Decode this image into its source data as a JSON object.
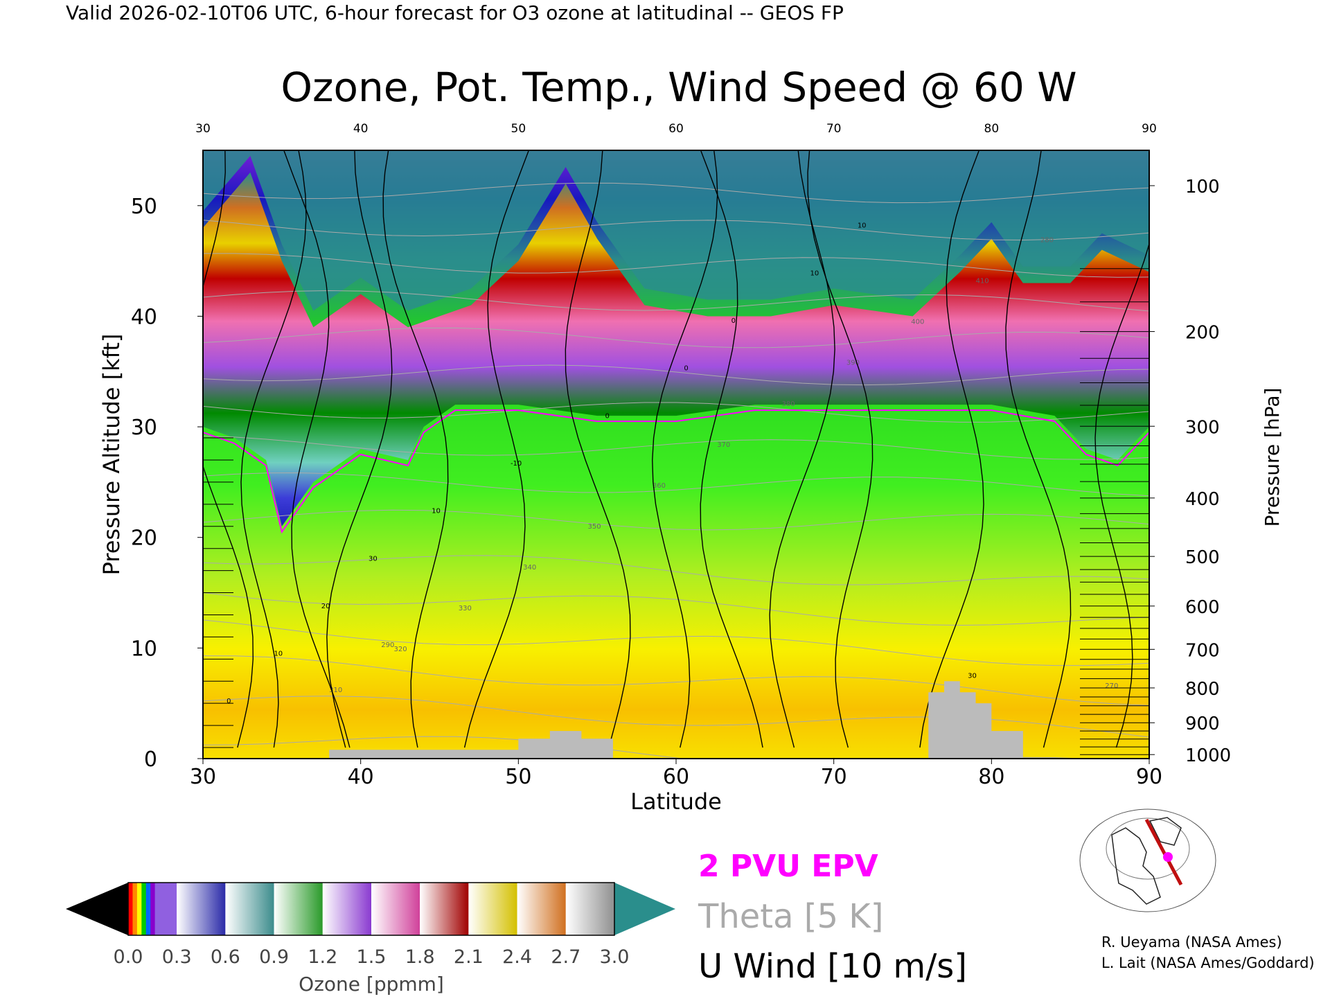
{
  "header": "Valid 2026-02-10T06 UTC, 6-hour forecast for O3 ozone at latitudinal -- GEOS FP",
  "title": "Ozone, Pot. Temp., Wind Speed @ 60 W",
  "colors": {
    "epv": "#ff00ff",
    "theta": "#aaaaaa",
    "wind": "#000000",
    "terrain": "#bbbbbb"
  },
  "chart_data": {
    "type": "heatmap",
    "title": "Ozone, Pot. Temp., Wind Speed @ 60 W",
    "xlabel": "Latitude",
    "ylabel": "Pressure Altitude [kft]",
    "y2label": "Pressure [hPa]",
    "xlim": [
      30,
      90
    ],
    "ylim": [
      0,
      55
    ],
    "x_ticks": [
      30,
      40,
      50,
      60,
      70,
      80,
      90
    ],
    "y_ticks": [
      0,
      10,
      20,
      30,
      40,
      50
    ],
    "y2_ticks": [
      1000,
      900,
      800,
      700,
      600,
      500,
      400,
      300,
      200,
      100
    ],
    "tropopause_kft": [
      {
        "lat": 30,
        "alt": 30
      },
      {
        "lat": 32,
        "alt": 29
      },
      {
        "lat": 34,
        "alt": 27
      },
      {
        "lat": 35,
        "alt": 21
      },
      {
        "lat": 37,
        "alt": 25
      },
      {
        "lat": 40,
        "alt": 28
      },
      {
        "lat": 43,
        "alt": 27
      },
      {
        "lat": 44,
        "alt": 30
      },
      {
        "lat": 46,
        "alt": 32
      },
      {
        "lat": 50,
        "alt": 32
      },
      {
        "lat": 55,
        "alt": 31
      },
      {
        "lat": 60,
        "alt": 31
      },
      {
        "lat": 65,
        "alt": 32
      },
      {
        "lat": 70,
        "alt": 32
      },
      {
        "lat": 75,
        "alt": 32
      },
      {
        "lat": 80,
        "alt": 32
      },
      {
        "lat": 84,
        "alt": 31
      },
      {
        "lat": 86,
        "alt": 28
      },
      {
        "lat": 88,
        "alt": 27
      },
      {
        "lat": 90,
        "alt": 30
      }
    ],
    "ozone_top_kft": [
      {
        "lat": 30,
        "alt": 48
      },
      {
        "lat": 33,
        "alt": 53
      },
      {
        "lat": 35,
        "alt": 45
      },
      {
        "lat": 37,
        "alt": 39
      },
      {
        "lat": 40,
        "alt": 42
      },
      {
        "lat": 43,
        "alt": 39
      },
      {
        "lat": 47,
        "alt": 41
      },
      {
        "lat": 50,
        "alt": 45
      },
      {
        "lat": 53,
        "alt": 52
      },
      {
        "lat": 55,
        "alt": 47
      },
      {
        "lat": 58,
        "alt": 41
      },
      {
        "lat": 62,
        "alt": 40
      },
      {
        "lat": 66,
        "alt": 40
      },
      {
        "lat": 70,
        "alt": 41
      },
      {
        "lat": 75,
        "alt": 40
      },
      {
        "lat": 78,
        "alt": 44
      },
      {
        "lat": 80,
        "alt": 47
      },
      {
        "lat": 82,
        "alt": 43
      },
      {
        "lat": 85,
        "alt": 43
      },
      {
        "lat": 87,
        "alt": 46
      },
      {
        "lat": 90,
        "alt": 44
      }
    ],
    "terrain_kft": [
      {
        "lat": 38,
        "alt": 0.8
      },
      {
        "lat": 50,
        "alt": 0.8
      },
      {
        "lat": 50,
        "alt": 1.8
      },
      {
        "lat": 52,
        "alt": 1.8
      },
      {
        "lat": 52,
        "alt": 2.5
      },
      {
        "lat": 54,
        "alt": 2.5
      },
      {
        "lat": 54,
        "alt": 1.8
      },
      {
        "lat": 56,
        "alt": 1.8
      },
      {
        "lat": 56,
        "alt": 0
      },
      {
        "lat": 76,
        "alt": 0
      },
      {
        "lat": 76,
        "alt": 6
      },
      {
        "lat": 77,
        "alt": 6
      },
      {
        "lat": 77,
        "alt": 7
      },
      {
        "lat": 78,
        "alt": 7
      },
      {
        "lat": 78,
        "alt": 6
      },
      {
        "lat": 79,
        "alt": 6
      },
      {
        "lat": 79,
        "alt": 5
      },
      {
        "lat": 80,
        "alt": 5
      },
      {
        "lat": 80,
        "alt": 2.5
      },
      {
        "lat": 82,
        "alt": 2.5
      },
      {
        "lat": 82,
        "alt": 0
      }
    ],
    "theta_labels": [
      "310",
      "320",
      "330",
      "340",
      "350",
      "360",
      "370",
      "380",
      "390",
      "400",
      "410",
      "280",
      "270",
      "290"
    ],
    "wind_labels": [
      "0",
      "10",
      "20",
      "30",
      "10",
      "-10",
      "0",
      "0",
      "0",
      "10",
      "10",
      "30"
    ],
    "legend": [
      "2 PVU EPV",
      "Theta [5 K]",
      "U Wind [10 m/s]"
    ]
  },
  "colorbar": {
    "label": "Ozone [ppmm]",
    "ticks": [
      "0.0",
      "0.3",
      "0.6",
      "0.9",
      "1.2",
      "1.5",
      "1.8",
      "2.1",
      "2.4",
      "2.7",
      "3.0"
    ],
    "min": 0,
    "max": 3.0,
    "blocks": [
      "#2a2aa8",
      "#3c8c8c",
      "#2a9a2a",
      "#8a3ad0",
      "#d0409a",
      "#a00000",
      "#d4c000",
      "#d07020",
      "#909090"
    ]
  },
  "credits": {
    "line1": "R. Ueyama (NASA Ames)",
    "line2": "L. Lait (NASA Ames/Goddard)"
  }
}
